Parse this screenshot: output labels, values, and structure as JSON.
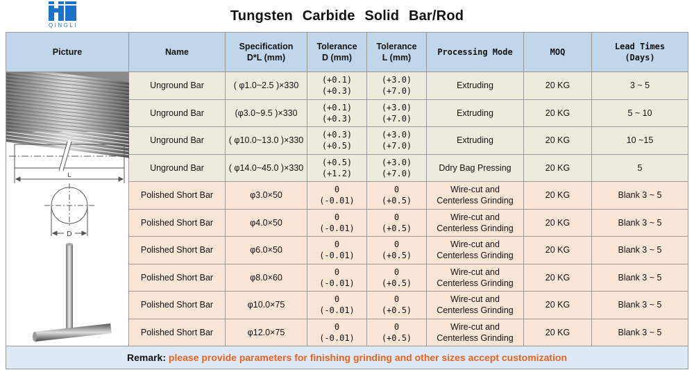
{
  "brand": {
    "name": "QINGLI",
    "color": "#1a73c8"
  },
  "title": "Tungsten  Carbide  Solid  Bar/Rod",
  "headers": {
    "picture": "Picture",
    "name": "Name",
    "spec_line1": "Specification",
    "spec_line2": "D*L (mm)",
    "tol_d_line1": "Tolerance",
    "tol_d_line2": "D (mm)",
    "tol_l_line1": "Tolerance",
    "tol_l_line2": "L (mm)",
    "processing": "Processing Mode",
    "moq": "MOQ",
    "lead_line1": "Lead Times",
    "lead_line2": "(Days)"
  },
  "rows": [
    {
      "name": "Unground Bar",
      "spec": "( φ1.0~2.5 )×330",
      "tol_d": [
        "(+0.1)",
        "(+0.3)"
      ],
      "tol_l": [
        "(+3.0)",
        "(+7.0)"
      ],
      "process": [
        "Extruding"
      ],
      "moq": "20 KG",
      "lead": "3 ~ 5",
      "group": "g"
    },
    {
      "name": "Unground Bar",
      "spec": "(φ3.0~9.5 )×330",
      "tol_d": [
        "(+0.1)",
        "(+0.3)"
      ],
      "tol_l": [
        "(+3.0)",
        "(+7.0)"
      ],
      "process": [
        "Extruding"
      ],
      "moq": "20 KG",
      "lead": "5 ~ 10",
      "group": "g"
    },
    {
      "name": "Unground Bar",
      "spec": "( φ10.0~13.0 )×330",
      "tol_d": [
        "(+0.3)",
        "(+0.5)"
      ],
      "tol_l": [
        "(+3.0)",
        "(+7.0)"
      ],
      "process": [
        "Extruding"
      ],
      "moq": "20 KG",
      "lead": "10 ~15",
      "group": "g"
    },
    {
      "name": "Unground Bar",
      "spec": "( φ14.0~45.0 )×330",
      "tol_d": [
        "(+0.5)",
        "(+1.2)"
      ],
      "tol_l": [
        "(+3.0)",
        "(+7.0)"
      ],
      "process": [
        "Ddry Bag Pressing"
      ],
      "moq": "20 KG",
      "lead": "5",
      "group": "g"
    },
    {
      "name": "Polished Short Bar",
      "spec": "φ3.0×50",
      "tol_d": [
        "0",
        "(-0.01)"
      ],
      "tol_l": [
        "0",
        "(+0.5)"
      ],
      "process": [
        "Wire-cut and",
        "Centerless Grinding"
      ],
      "moq": "20 KG",
      "lead": "Blank  3 ~ 5",
      "group": "p"
    },
    {
      "name": "Polished Short Bar",
      "spec": "φ4.0×50",
      "tol_d": [
        "0",
        "(-0.01)"
      ],
      "tol_l": [
        "0",
        "(+0.5)"
      ],
      "process": [
        "Wire-cut and",
        "Centerless Grinding"
      ],
      "moq": "20 KG",
      "lead": "Blank  3 ~ 5",
      "group": "p"
    },
    {
      "name": "Polished Short Bar",
      "spec": "φ6.0×50",
      "tol_d": [
        "0",
        "(-0.01)"
      ],
      "tol_l": [
        "0",
        "(+0.5)"
      ],
      "process": [
        "Wire-cut and",
        "Centerless Grinding"
      ],
      "moq": "20 KG",
      "lead": "Blank  3 ~ 5",
      "group": "p"
    },
    {
      "name": "Polished Short Bar",
      "spec": "φ8.0×60",
      "tol_d": [
        "0",
        "(-0.01)"
      ],
      "tol_l": [
        "0",
        "(+0.5)"
      ],
      "process": [
        "Wire-cut and",
        "Centerless Grinding"
      ],
      "moq": "20 KG",
      "lead": "Blank  3 ~ 5",
      "group": "p"
    },
    {
      "name": "Polished Short Bar",
      "spec": "φ10.0×75",
      "tol_d": [
        "0",
        "(-0.01)"
      ],
      "tol_l": [
        "0",
        "(+0.5)"
      ],
      "process": [
        "Wire-cut and",
        "Centerless Grinding"
      ],
      "moq": "20 KG",
      "lead": "Blank  3 ~ 5",
      "group": "p"
    },
    {
      "name": "Polished Short Bar",
      "spec": "φ12.0×75",
      "tol_d": [
        "0",
        "(-0.01)"
      ],
      "tol_l": [
        "0",
        "(+0.5)"
      ],
      "process": [
        "Wire-cut and",
        "Centerless Grinding"
      ],
      "moq": "20 KG",
      "lead": "Blank  3 ~ 5",
      "group": "p"
    }
  ],
  "drawing_labels": {
    "length": "L",
    "diameter": "D"
  },
  "remark": {
    "label": "Remark:",
    "text": " please provide parameters for finishing grinding  and other sizes accept customization"
  }
}
